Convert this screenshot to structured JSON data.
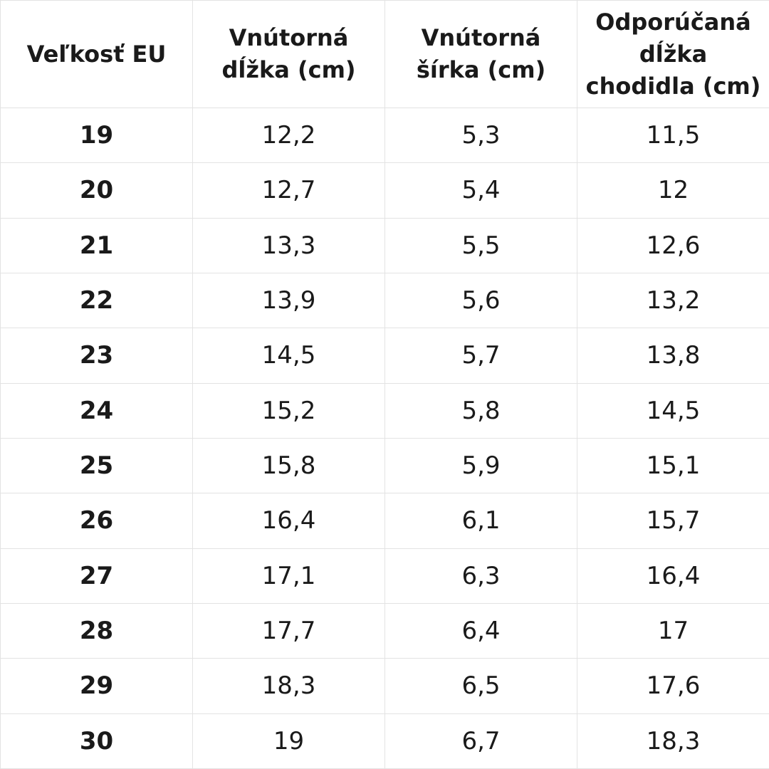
{
  "headers": [
    "Veľkosť EU",
    "Vnútorná\ndĺžka (cm)",
    "Vnútorná\nšírka (cm)",
    "Odporúčaná\ndĺžka\nchodidla (cm)"
  ],
  "rows": [
    [
      "19",
      "12,2",
      "5,3",
      "11,5"
    ],
    [
      "20",
      "12,7",
      "5,4",
      "12"
    ],
    [
      "21",
      "13,3",
      "5,5",
      "12,6"
    ],
    [
      "22",
      "13,9",
      "5,6",
      "13,2"
    ],
    [
      "23",
      "14,5",
      "5,7",
      "13,8"
    ],
    [
      "24",
      "15,2",
      "5,8",
      "14,5"
    ],
    [
      "25",
      "15,8",
      "5,9",
      "15,1"
    ],
    [
      "26",
      "16,4",
      "6,1",
      "15,7"
    ],
    [
      "27",
      "17,1",
      "6,3",
      "16,4"
    ],
    [
      "28",
      "17,7",
      "6,4",
      "17"
    ],
    [
      "29",
      "18,3",
      "6,5",
      "17,6"
    ],
    [
      "30",
      "19",
      "6,7",
      "18,3"
    ]
  ]
}
